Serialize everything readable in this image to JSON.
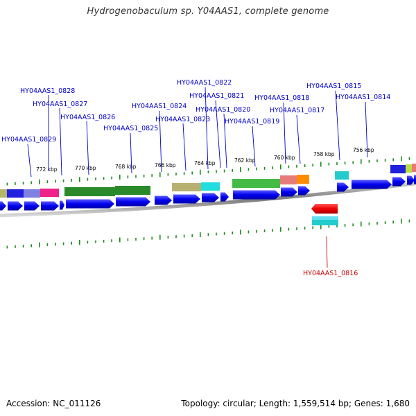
{
  "title": "Hydrogenobaculum sp. Y04AAS1, complete genome",
  "footer": {
    "accession": "Accession: NC_011126",
    "topology": "Topology: circular; Length: 1,559,514 bp; Genes: 1,680"
  },
  "colors": {
    "forward_gene": "#0000ee",
    "selected_gene": "#ee0000",
    "label": "#0000cc",
    "selected_label": "#cc0000",
    "tick": "#1a8a1a",
    "backbone": "#888888"
  },
  "kbp_ticks": [
    "772 kbp",
    "770 kbp",
    "768 kbp",
    "766 kbp",
    "764 kbp",
    "762 kbp",
    "760 kbp",
    "758 kbp",
    "756 kbp"
  ],
  "gene_labels": [
    {
      "name": "HY04AAS1_0828",
      "selected": false
    },
    {
      "name": "HY04AAS1_0827",
      "selected": false
    },
    {
      "name": "HY04AAS1_0826",
      "selected": false
    },
    {
      "name": "HY04AAS1_0829",
      "selected": false
    },
    {
      "name": "HY04AAS1_0825",
      "selected": false
    },
    {
      "name": "HY04AAS1_0824",
      "selected": false
    },
    {
      "name": "HY04AAS1_0823",
      "selected": false
    },
    {
      "name": "HY04AAS1_0822",
      "selected": false
    },
    {
      "name": "HY04AAS1_0821",
      "selected": false
    },
    {
      "name": "HY04AAS1_0820",
      "selected": false
    },
    {
      "name": "HY04AAS1_0819",
      "selected": false
    },
    {
      "name": "HY04AAS1_0818",
      "selected": false
    },
    {
      "name": "HY04AAS1_0817",
      "selected": false
    },
    {
      "name": "HY04AAS1_0815",
      "selected": false
    },
    {
      "name": "HY04AAS1_0814",
      "selected": false
    },
    {
      "name": "HY04AAS1_0816",
      "selected": true
    }
  ]
}
